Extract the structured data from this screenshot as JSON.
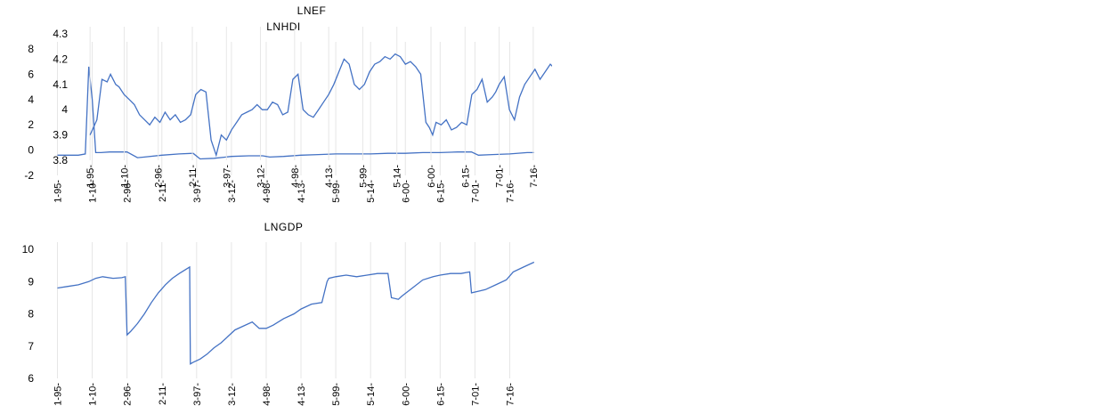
{
  "chart_data": [
    {
      "id": "hdi",
      "type": "line",
      "title": "LNHDI",
      "xlabel": "",
      "ylabel": "",
      "categories": [
        "1-95-",
        "1-10-",
        "2-96-",
        "2-11-",
        "3-97-",
        "3-12-",
        "4-98-",
        "4-13-",
        "5-99-",
        "5-14-",
        "6-00-",
        "6-15-",
        "7-01-",
        "7-16-"
      ],
      "yticks": [
        -2,
        0,
        2,
        4,
        6,
        8
      ],
      "ylim": [
        -2,
        8
      ],
      "grid": true,
      "color": "#4472c4",
      "series": [
        {
          "name": "",
          "x": [
            0,
            0.6,
            0.8,
            0.9,
            1.0,
            1.1,
            1.25,
            1.5,
            2.0,
            2.3,
            2.5,
            3.0,
            3.5,
            3.9,
            4.1,
            4.5,
            5.0,
            5.5,
            5.9,
            6.1,
            6.5,
            7.0,
            7.5,
            8.0,
            8.5,
            9.0,
            9.5,
            10.0,
            10.5,
            11.0,
            11.5,
            11.9,
            12.1,
            12.5,
            13.0,
            13.5,
            13.7
          ],
          "values": [
            -0.4,
            -0.4,
            -0.3,
            6.6,
            4.0,
            -0.2,
            -0.2,
            -0.15,
            -0.15,
            -0.6,
            -0.55,
            -0.4,
            -0.3,
            -0.25,
            -0.7,
            -0.65,
            -0.5,
            -0.45,
            -0.45,
            -0.55,
            -0.5,
            -0.4,
            -0.35,
            -0.3,
            -0.3,
            -0.3,
            -0.25,
            -0.25,
            -0.2,
            -0.2,
            -0.15,
            -0.15,
            -0.4,
            -0.35,
            -0.3,
            -0.2,
            -0.2
          ]
        }
      ]
    },
    {
      "id": "ef",
      "type": "line",
      "title": "LNEF",
      "xlabel": "",
      "ylabel": "",
      "categories": [
        "1-95-",
        "1-10-",
        "2-96-",
        "2-11-",
        "3-97-",
        "3-12-",
        "4-98-",
        "4-13-",
        "5-99-",
        "5-14-",
        "6-00-",
        "6-15-",
        "7-01-",
        "7-16-"
      ],
      "yticks": [
        3.8,
        3.9,
        4.0,
        4.1,
        4.2,
        4.3
      ],
      "ylim": [
        3.8,
        4.3
      ],
      "grid": true,
      "color": "#4472c4",
      "series": [
        {
          "name": "",
          "x": [
            0,
            0.1,
            0.2,
            0.35,
            0.5,
            0.6,
            0.75,
            0.85,
            1.0,
            1.15,
            1.3,
            1.45,
            1.6,
            1.75,
            1.9,
            2.05,
            2.2,
            2.35,
            2.5,
            2.65,
            2.8,
            2.95,
            3.1,
            3.25,
            3.4,
            3.55,
            3.7,
            3.85,
            4.0,
            4.15,
            4.3,
            4.45,
            4.6,
            4.75,
            4.9,
            5.05,
            5.2,
            5.35,
            5.5,
            5.65,
            5.8,
            5.95,
            6.1,
            6.25,
            6.4,
            6.55,
            6.7,
            6.85,
            7.0,
            7.15,
            7.3,
            7.45,
            7.6,
            7.75,
            7.9,
            8.05,
            8.2,
            8.35,
            8.5,
            8.65,
            8.8,
            8.95,
            9.1,
            9.25,
            9.4,
            9.55,
            9.7,
            9.85,
            9.95,
            10.05,
            10.15,
            10.3,
            10.45,
            10.6,
            10.75,
            10.9,
            11.05,
            11.2,
            11.35,
            11.5,
            11.65,
            11.8,
            11.9,
            12.0,
            12.15,
            12.3,
            12.45,
            12.6,
            12.75,
            12.9,
            13.05,
            13.2,
            13.35,
            13.5,
            13.65,
            13.8,
            13.9,
            14.0
          ],
          "values": [
            3.9,
            3.93,
            3.96,
            4.12,
            4.11,
            4.14,
            4.1,
            4.09,
            4.06,
            4.04,
            4.02,
            3.98,
            3.96,
            3.94,
            3.97,
            3.95,
            3.99,
            3.96,
            3.98,
            3.95,
            3.96,
            3.98,
            4.06,
            4.08,
            4.07,
            3.88,
            3.82,
            3.9,
            3.88,
            3.92,
            3.95,
            3.98,
            3.99,
            4.0,
            4.02,
            4.0,
            4.0,
            4.03,
            4.02,
            3.98,
            3.99,
            4.12,
            4.14,
            4.0,
            3.98,
            3.97,
            4.0,
            4.03,
            4.06,
            4.1,
            4.15,
            4.2,
            4.18,
            4.1,
            4.08,
            4.1,
            4.15,
            4.18,
            4.19,
            4.21,
            4.2,
            4.22,
            4.21,
            4.18,
            4.19,
            4.17,
            4.14,
            3.95,
            3.93,
            3.9,
            3.95,
            3.94,
            3.96,
            3.92,
            3.93,
            3.95,
            3.94,
            4.06,
            4.08,
            4.12,
            4.03,
            4.05,
            4.07,
            4.1,
            4.13,
            4.0,
            3.96,
            4.05,
            4.1,
            4.13,
            4.16,
            4.12,
            4.15,
            4.18,
            4.16,
            4.15,
            4.05,
            4.04
          ]
        }
      ]
    },
    {
      "id": "gdp",
      "type": "line",
      "title": "LNGDP",
      "xlabel": "",
      "ylabel": "",
      "categories": [
        "1-95-",
        "1-10-",
        "2-96-",
        "2-11-",
        "3-97-",
        "3-12-",
        "4-98-",
        "4-13-",
        "5-99-",
        "5-14-",
        "6-00-",
        "6-15-",
        "7-01-",
        "7-16-"
      ],
      "yticks": [
        6,
        7,
        8,
        9,
        10
      ],
      "ylim": [
        6,
        10
      ],
      "grid": true,
      "color": "#4472c4",
      "series": [
        {
          "name": "",
          "x": [
            0,
            0.3,
            0.6,
            0.9,
            1.1,
            1.3,
            1.6,
            1.85,
            1.95,
            2.0,
            2.1,
            2.3,
            2.5,
            2.7,
            2.9,
            3.1,
            3.3,
            3.5,
            3.8,
            3.82,
            3.9,
            4.1,
            4.3,
            4.5,
            4.7,
            4.9,
            5.1,
            5.3,
            5.6,
            5.8,
            5.9,
            6.0,
            6.2,
            6.5,
            6.8,
            7.0,
            7.3,
            7.6,
            7.75,
            7.8,
            8.0,
            8.3,
            8.6,
            8.9,
            9.2,
            9.5,
            9.6,
            9.8,
            9.9,
            10.2,
            10.5,
            10.8,
            11.0,
            11.3,
            11.6,
            11.85,
            11.9,
            12.1,
            12.3,
            12.6,
            12.9,
            13.1,
            13.4,
            13.7
          ],
          "values": [
            8.8,
            8.85,
            8.9,
            9.0,
            9.1,
            9.15,
            9.1,
            9.12,
            9.15,
            7.35,
            7.45,
            7.7,
            8.0,
            8.35,
            8.65,
            8.9,
            9.1,
            9.25,
            9.45,
            6.45,
            6.5,
            6.6,
            6.75,
            6.95,
            7.1,
            7.3,
            7.5,
            7.6,
            7.75,
            7.55,
            7.55,
            7.55,
            7.65,
            7.85,
            8.0,
            8.15,
            8.3,
            8.35,
            9.0,
            9.1,
            9.15,
            9.2,
            9.15,
            9.2,
            9.25,
            9.25,
            8.5,
            8.45,
            8.55,
            8.8,
            9.05,
            9.15,
            9.2,
            9.25,
            9.25,
            9.3,
            8.65,
            8.7,
            8.75,
            8.9,
            9.05,
            9.3,
            9.45,
            9.6
          ]
        }
      ]
    }
  ]
}
